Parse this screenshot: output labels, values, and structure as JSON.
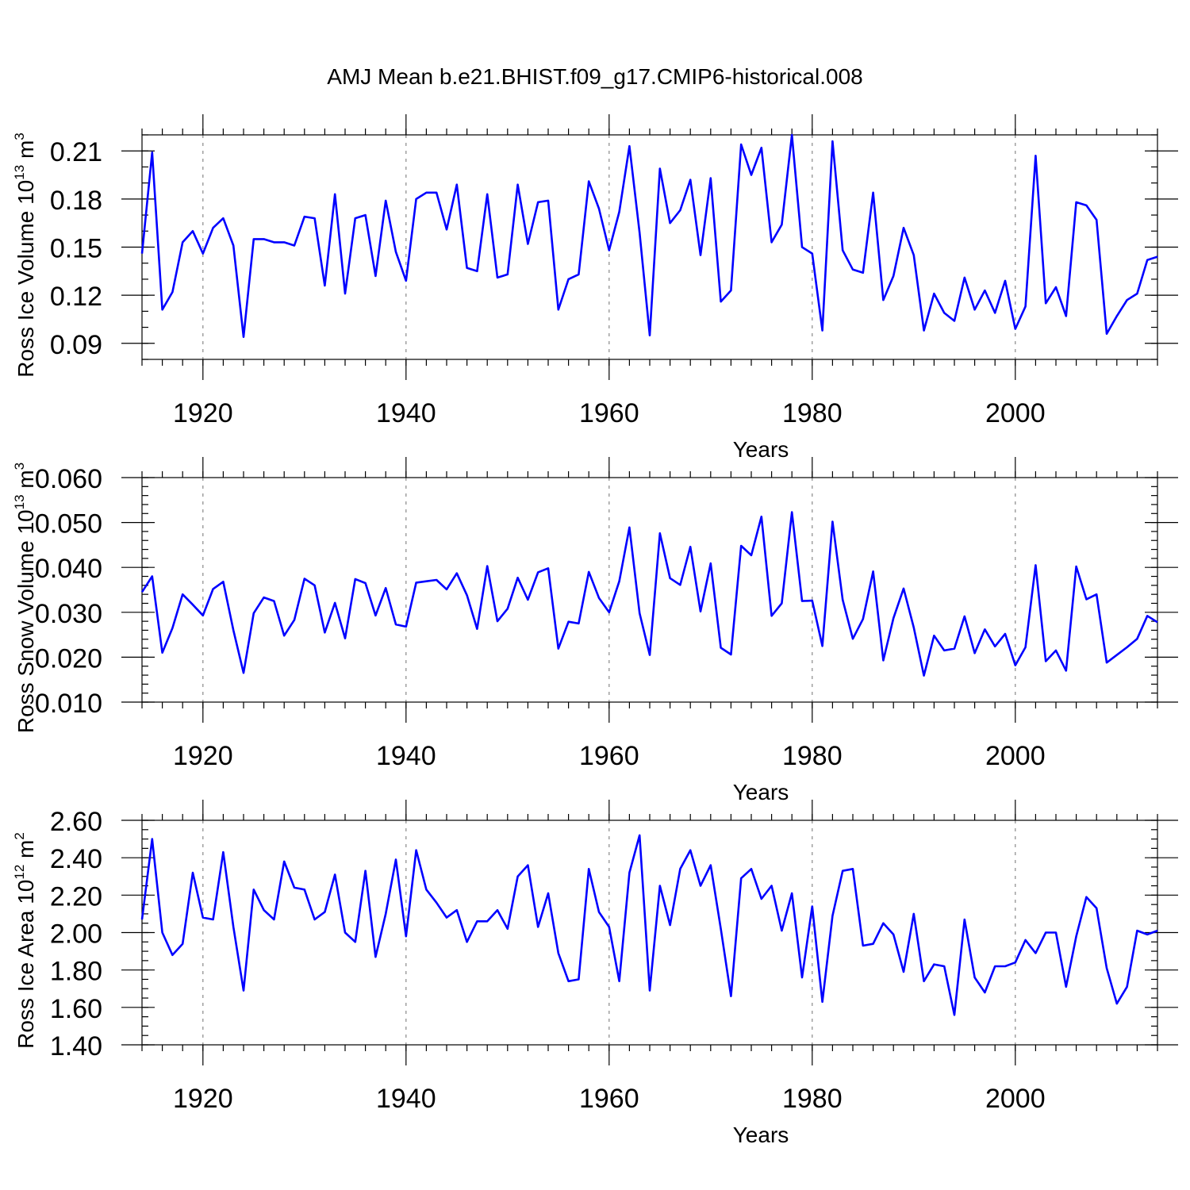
{
  "title": "AMJ Mean b.e21.BHIST.f09_g17.CMIP6-historical.008",
  "line_color": "#0000ff",
  "chart_data": [
    {
      "type": "line",
      "name": "ross-ice-volume",
      "title": "AMJ Mean b.e21.BHIST.f09_g17.CMIP6-historical.008",
      "ylabel": "Ross Ice Volume",
      "ylabel_unit_base": "10",
      "ylabel_unit_exp": "13",
      "ylabel_unit_rest": "m",
      "ylabel_unit_rest_exp": "3",
      "xlabel": "Years",
      "xlim": [
        1914,
        2014
      ],
      "ylim": [
        0.08,
        0.22
      ],
      "xticks": [
        1920,
        1940,
        1960,
        1980,
        2000
      ],
      "xtick_labels": [
        "1920",
        "1940",
        "1960",
        "1980",
        "2000"
      ],
      "yticks": [
        0.09,
        0.12,
        0.15,
        0.18,
        0.21
      ],
      "ytick_labels": [
        "0.09",
        "0.12",
        "0.15",
        "0.18",
        "0.21"
      ],
      "minor_step": 0.01,
      "grid": "x-dashed",
      "x": [
        1914,
        1915,
        1916,
        1917,
        1918,
        1919,
        1920,
        1921,
        1922,
        1923,
        1924,
        1925,
        1926,
        1927,
        1928,
        1929,
        1930,
        1931,
        1932,
        1933,
        1934,
        1935,
        1936,
        1937,
        1938,
        1939,
        1940,
        1941,
        1942,
        1943,
        1944,
        1945,
        1946,
        1947,
        1948,
        1949,
        1950,
        1951,
        1952,
        1953,
        1954,
        1955,
        1956,
        1957,
        1958,
        1959,
        1960,
        1961,
        1962,
        1963,
        1964,
        1965,
        1966,
        1967,
        1968,
        1969,
        1970,
        1971,
        1972,
        1973,
        1974,
        1975,
        1976,
        1977,
        1978,
        1979,
        1980,
        1981,
        1982,
        1983,
        1984,
        1985,
        1986,
        1987,
        1988,
        1989,
        1990,
        1991,
        1992,
        1993,
        1994,
        1995,
        1996,
        1997,
        1998,
        1999,
        2000,
        2001,
        2002,
        2003,
        2004,
        2005,
        2006,
        2007,
        2008,
        2009,
        2010,
        2011,
        2012,
        2013,
        2014
      ],
      "values": [
        0.146,
        0.209,
        0.111,
        0.122,
        0.153,
        0.16,
        0.146,
        0.162,
        0.168,
        0.151,
        0.094,
        0.155,
        0.155,
        0.153,
        0.153,
        0.151,
        0.169,
        0.168,
        0.126,
        0.183,
        0.121,
        0.168,
        0.17,
        0.132,
        0.179,
        0.147,
        0.129,
        0.18,
        0.184,
        0.184,
        0.161,
        0.189,
        0.137,
        0.135,
        0.183,
        0.131,
        0.133,
        0.189,
        0.152,
        0.178,
        0.179,
        0.111,
        0.13,
        0.133,
        0.191,
        0.174,
        0.148,
        0.172,
        0.213,
        0.159,
        0.095,
        0.199,
        0.165,
        0.173,
        0.192,
        0.145,
        0.193,
        0.116,
        0.123,
        0.214,
        0.195,
        0.212,
        0.153,
        0.164,
        0.22,
        0.15,
        0.146,
        0.098,
        0.216,
        0.148,
        0.136,
        0.134,
        0.184,
        0.117,
        0.132,
        0.162,
        0.145,
        0.098,
        0.121,
        0.109,
        0.104,
        0.131,
        0.111,
        0.123,
        0.109,
        0.129,
        0.099,
        0.113,
        0.207,
        0.115,
        0.125,
        0.107,
        0.178,
        0.176,
        0.167,
        0.096,
        0.107,
        0.117,
        0.121,
        0.142,
        0.144
      ]
    },
    {
      "type": "line",
      "name": "ross-snow-volume",
      "ylabel": "Ross Snow Volume",
      "ylabel_unit_base": "10",
      "ylabel_unit_exp": "13",
      "ylabel_unit_rest": "m",
      "ylabel_unit_rest_exp": "3",
      "xlabel": "Years",
      "xlim": [
        1914,
        2014
      ],
      "ylim": [
        0.01,
        0.06
      ],
      "xticks": [
        1920,
        1940,
        1960,
        1980,
        2000
      ],
      "xtick_labels": [
        "1920",
        "1940",
        "1960",
        "1980",
        "2000"
      ],
      "yticks": [
        0.01,
        0.02,
        0.03,
        0.04,
        0.05,
        0.06
      ],
      "ytick_labels": [
        "0.010",
        "0.020",
        "0.030",
        "0.040",
        "0.050",
        "0.060"
      ],
      "minor_step": 0.002,
      "grid": "x-dashed",
      "x": [
        1914,
        1915,
        1916,
        1917,
        1918,
        1919,
        1920,
        1921,
        1922,
        1923,
        1924,
        1925,
        1926,
        1927,
        1928,
        1929,
        1930,
        1931,
        1932,
        1933,
        1934,
        1935,
        1936,
        1937,
        1938,
        1939,
        1940,
        1941,
        1942,
        1943,
        1944,
        1945,
        1946,
        1947,
        1948,
        1949,
        1950,
        1951,
        1952,
        1953,
        1954,
        1955,
        1956,
        1957,
        1958,
        1959,
        1960,
        1961,
        1962,
        1963,
        1964,
        1965,
        1966,
        1967,
        1968,
        1969,
        1970,
        1971,
        1972,
        1973,
        1974,
        1975,
        1976,
        1977,
        1978,
        1979,
        1980,
        1981,
        1982,
        1983,
        1984,
        1985,
        1986,
        1987,
        1988,
        1989,
        1990,
        1991,
        1992,
        1993,
        1994,
        1995,
        1996,
        1997,
        1998,
        1999,
        2000,
        2001,
        2002,
        2003,
        2004,
        2005,
        2006,
        2007,
        2008,
        2009,
        2010,
        2011,
        2012,
        2013,
        2014
      ],
      "values": [
        0.0345,
        0.038,
        0.021,
        0.0265,
        0.034,
        0.0317,
        0.0293,
        0.0352,
        0.0368,
        0.026,
        0.0165,
        0.0298,
        0.0333,
        0.0325,
        0.0248,
        0.0283,
        0.0375,
        0.036,
        0.0255,
        0.0321,
        0.0242,
        0.0374,
        0.0365,
        0.0293,
        0.0354,
        0.0273,
        0.0268,
        0.0366,
        0.0369,
        0.0372,
        0.0351,
        0.0387,
        0.0338,
        0.0263,
        0.0403,
        0.028,
        0.0308,
        0.0377,
        0.0328,
        0.0389,
        0.0398,
        0.0219,
        0.0279,
        0.0275,
        0.039,
        0.0332,
        0.03,
        0.0369,
        0.0489,
        0.0298,
        0.0205,
        0.0476,
        0.0376,
        0.0361,
        0.0446,
        0.0302,
        0.0409,
        0.0221,
        0.0206,
        0.0448,
        0.0427,
        0.0513,
        0.0292,
        0.032,
        0.0523,
        0.0325,
        0.0326,
        0.0225,
        0.0502,
        0.0328,
        0.0241,
        0.0285,
        0.0391,
        0.0193,
        0.0287,
        0.0353,
        0.0266,
        0.0159,
        0.0248,
        0.0215,
        0.0219,
        0.0291,
        0.0209,
        0.0262,
        0.0224,
        0.0252,
        0.0182,
        0.0222,
        0.0405,
        0.0191,
        0.0215,
        0.017,
        0.0402,
        0.0329,
        0.034,
        0.0188,
        0.0205,
        0.0222,
        0.0241,
        0.0292,
        0.0278
      ]
    },
    {
      "type": "line",
      "name": "ross-ice-area",
      "ylabel": "Ross Ice Area",
      "ylabel_unit_base": "10",
      "ylabel_unit_exp": "12",
      "ylabel_unit_rest": "m",
      "ylabel_unit_rest_exp": "2",
      "xlabel": "Years",
      "xlim": [
        1914,
        2014
      ],
      "ylim": [
        1.4,
        2.6
      ],
      "xticks": [
        1920,
        1940,
        1960,
        1980,
        2000
      ],
      "xtick_labels": [
        "1920",
        "1940",
        "1960",
        "1980",
        "2000"
      ],
      "yticks": [
        1.4,
        1.6,
        1.8,
        2.0,
        2.2,
        2.4,
        2.6
      ],
      "ytick_labels": [
        "1.40",
        "1.60",
        "1.80",
        "2.00",
        "2.20",
        "2.40",
        "2.60"
      ],
      "minor_step": 0.05,
      "grid": "x-dashed",
      "x": [
        1914,
        1915,
        1916,
        1917,
        1918,
        1919,
        1920,
        1921,
        1922,
        1923,
        1924,
        1925,
        1926,
        1927,
        1928,
        1929,
        1930,
        1931,
        1932,
        1933,
        1934,
        1935,
        1936,
        1937,
        1938,
        1939,
        1940,
        1941,
        1942,
        1943,
        1944,
        1945,
        1946,
        1947,
        1948,
        1949,
        1950,
        1951,
        1952,
        1953,
        1954,
        1955,
        1956,
        1957,
        1958,
        1959,
        1960,
        1961,
        1962,
        1963,
        1964,
        1965,
        1966,
        1967,
        1968,
        1969,
        1970,
        1971,
        1972,
        1973,
        1974,
        1975,
        1976,
        1977,
        1978,
        1979,
        1980,
        1981,
        1982,
        1983,
        1984,
        1985,
        1986,
        1987,
        1988,
        1989,
        1990,
        1991,
        1992,
        1993,
        1994,
        1995,
        1996,
        1997,
        1998,
        1999,
        2000,
        2001,
        2002,
        2003,
        2004,
        2005,
        2006,
        2007,
        2008,
        2009,
        2010,
        2011,
        2012,
        2013,
        2014
      ],
      "values": [
        2.07,
        2.5,
        2.0,
        1.88,
        1.94,
        2.32,
        2.08,
        2.07,
        2.43,
        2.03,
        1.69,
        2.23,
        2.12,
        2.07,
        2.38,
        2.24,
        2.23,
        2.07,
        2.11,
        2.31,
        2.0,
        1.95,
        2.33,
        1.87,
        2.1,
        2.39,
        1.98,
        2.44,
        2.23,
        2.16,
        2.08,
        2.12,
        1.95,
        2.06,
        2.06,
        2.12,
        2.02,
        2.3,
        2.36,
        2.03,
        2.21,
        1.89,
        1.74,
        1.75,
        2.34,
        2.11,
        2.03,
        1.74,
        2.32,
        2.52,
        1.69,
        2.25,
        2.04,
        2.34,
        2.44,
        2.25,
        2.36,
        2.02,
        1.66,
        2.29,
        2.34,
        2.18,
        2.25,
        2.01,
        2.21,
        1.76,
        2.14,
        1.63,
        2.09,
        2.33,
        2.34,
        1.93,
        1.94,
        2.05,
        1.99,
        1.79,
        2.1,
        1.74,
        1.83,
        1.82,
        1.56,
        2.07,
        1.76,
        1.68,
        1.82,
        1.82,
        1.84,
        1.96,
        1.89,
        2.0,
        2.0,
        1.71,
        1.98,
        2.19,
        2.13,
        1.81,
        1.62,
        1.71,
        2.01,
        1.99,
        2.01
      ]
    }
  ]
}
